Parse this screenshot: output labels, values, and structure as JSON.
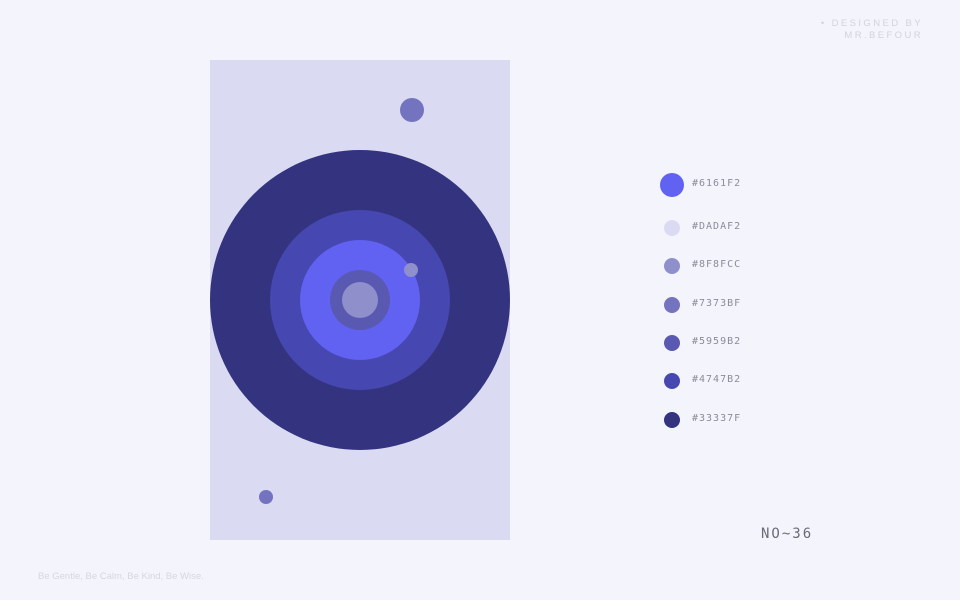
{
  "credit": {
    "line1": "• DESIGNED BY",
    "line2": "MR.BEFOUR"
  },
  "artwork": {
    "background": "#DADAF2",
    "rings": [
      "#33337F",
      "#4747B2",
      "#6161F2",
      "#5959B2",
      "#8F8FCC"
    ],
    "dots": [
      "#7373BF",
      "#8F8FCC",
      "#7373BF"
    ]
  },
  "palette": [
    {
      "hex": "#6161F2",
      "label": "#6161F2"
    },
    {
      "hex": "#DADAF2",
      "label": "#DADAF2"
    },
    {
      "hex": "#8F8FCC",
      "label": "#8F8FCC"
    },
    {
      "hex": "#7373BF",
      "label": "#7373BF"
    },
    {
      "hex": "#5959B2",
      "label": "#5959B2"
    },
    {
      "hex": "#4747B2",
      "label": "#4747B2"
    },
    {
      "hex": "#33337F",
      "label": "#33337F"
    }
  ],
  "number": "NO~36",
  "motto": "Be Gentle, Be Calm, Be Kind, Be Wise."
}
